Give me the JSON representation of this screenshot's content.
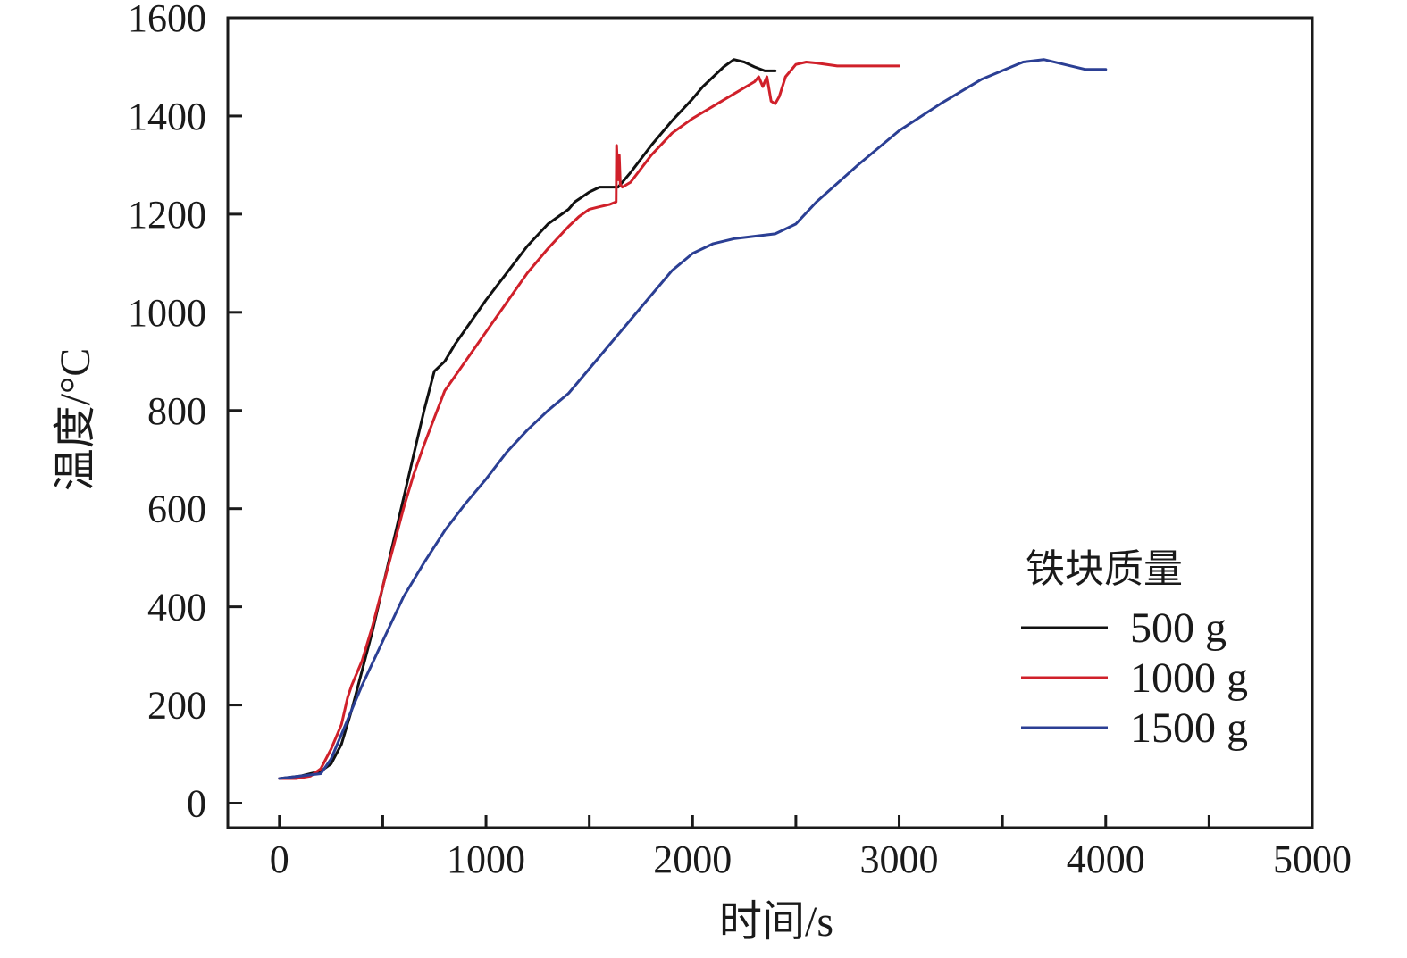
{
  "chart_data": {
    "type": "line",
    "xlabel": "时间/s",
    "ylabel": "温度/°C",
    "xlim": [
      -250,
      5000
    ],
    "ylim": [
      -50,
      1600
    ],
    "xticks": [
      0,
      1000,
      2000,
      3000,
      4000,
      5000
    ],
    "yticks": [
      0,
      200,
      400,
      600,
      800,
      1000,
      1200,
      1400,
      1600
    ],
    "grid": false,
    "legend": {
      "title": "铁块质量",
      "placement": "right"
    },
    "series": [
      {
        "name": "500 g",
        "color": "#111111",
        "x": [
          0,
          100,
          150,
          200,
          250,
          300,
          350,
          400,
          450,
          500,
          550,
          600,
          650,
          700,
          750,
          800,
          850,
          900,
          950,
          1000,
          1100,
          1200,
          1300,
          1400,
          1430,
          1500,
          1550,
          1600,
          1640,
          1660,
          1700,
          1800,
          1900,
          2000,
          2050,
          2100,
          2150,
          2200,
          2250,
          2300,
          2350,
          2400
        ],
        "y": [
          50,
          55,
          60,
          65,
          80,
          120,
          190,
          270,
          350,
          440,
          530,
          620,
          710,
          800,
          880,
          900,
          935,
          965,
          995,
          1025,
          1080,
          1135,
          1180,
          1210,
          1225,
          1245,
          1255,
          1255,
          1255,
          1265,
          1285,
          1340,
          1390,
          1435,
          1460,
          1480,
          1500,
          1515,
          1510,
          1500,
          1492,
          1492
        ]
      },
      {
        "name": "1000 g",
        "color": "#d0202a",
        "x": [
          0,
          80,
          150,
          200,
          250,
          300,
          330,
          350,
          400,
          450,
          500,
          550,
          600,
          650,
          700,
          750,
          800,
          850,
          900,
          950,
          1000,
          1100,
          1200,
          1300,
          1400,
          1450,
          1500,
          1550,
          1600,
          1630,
          1632,
          1640,
          1645,
          1650,
          1660,
          1700,
          1800,
          1900,
          2000,
          2100,
          2200,
          2300,
          2320,
          2340,
          2360,
          2380,
          2400,
          2420,
          2450,
          2500,
          2550,
          2600,
          2700,
          2800,
          3000
        ],
        "y": [
          50,
          50,
          55,
          70,
          110,
          160,
          215,
          240,
          290,
          360,
          440,
          520,
          600,
          670,
          730,
          785,
          840,
          870,
          900,
          930,
          960,
          1020,
          1080,
          1130,
          1175,
          1195,
          1210,
          1215,
          1220,
          1225,
          1340,
          1270,
          1320,
          1260,
          1255,
          1265,
          1320,
          1365,
          1395,
          1420,
          1445,
          1470,
          1480,
          1460,
          1480,
          1430,
          1425,
          1440,
          1480,
          1505,
          1510,
          1508,
          1502,
          1502,
          1502
        ]
      },
      {
        "name": "1500 g",
        "color": "#2b3f94",
        "x": [
          0,
          100,
          200,
          250,
          300,
          350,
          400,
          500,
          600,
          700,
          800,
          900,
          1000,
          1100,
          1200,
          1300,
          1400,
          1500,
          1600,
          1700,
          1800,
          1900,
          2000,
          2100,
          2200,
          2300,
          2400,
          2500,
          2600,
          2800,
          3000,
          3200,
          3400,
          3600,
          3700,
          3800,
          3900,
          4000
        ],
        "y": [
          50,
          55,
          60,
          90,
          140,
          190,
          240,
          330,
          420,
          490,
          555,
          610,
          660,
          715,
          760,
          800,
          835,
          885,
          935,
          985,
          1035,
          1085,
          1120,
          1140,
          1150,
          1155,
          1160,
          1180,
          1225,
          1300,
          1370,
          1425,
          1475,
          1510,
          1515,
          1505,
          1495,
          1495
        ]
      }
    ]
  }
}
